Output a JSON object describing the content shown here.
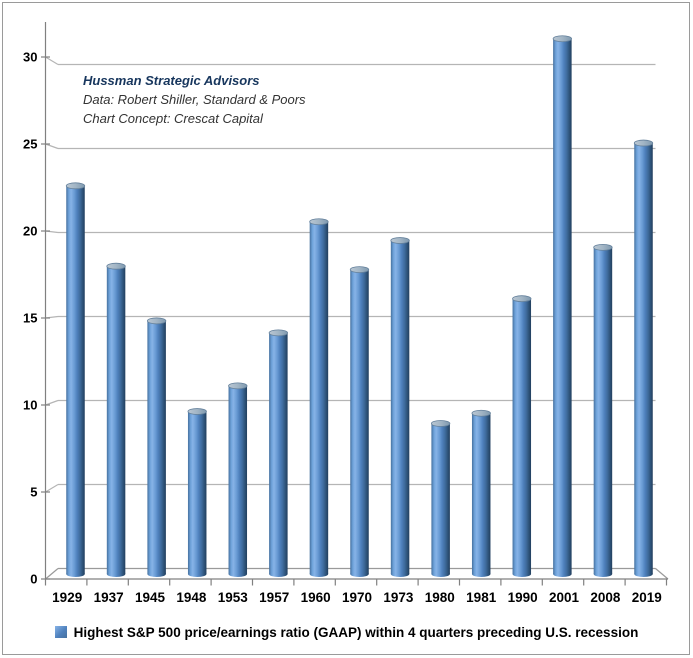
{
  "window": {
    "background": "#FFFFFF",
    "border_color": "#9A9A9A"
  },
  "chart_data": {
    "type": "bar",
    "style": "3d-cylinder",
    "categories": [
      "1929",
      "1937",
      "1945",
      "1948",
      "1953",
      "1957",
      "1960",
      "1970",
      "1973",
      "1980",
      "1981",
      "1990",
      "2001",
      "2008",
      "2019"
    ],
    "values": [
      22.7,
      18.0,
      14.8,
      9.5,
      11.0,
      14.1,
      20.6,
      17.8,
      19.5,
      8.8,
      9.4,
      16.1,
      31.3,
      19.1,
      25.2
    ],
    "legend": "Highest S&P 500 price/earnings ratio (GAAP) within 4 quarters preceding U.S. recession",
    "legend_position": "bottom",
    "xlabel": "",
    "ylabel": "",
    "yticks": [
      0,
      5,
      10,
      15,
      20,
      25,
      30
    ],
    "ylim": [
      0,
      32.6
    ],
    "grid": true,
    "annotation": {
      "line1": "Hussman Strategic Advisors",
      "line2": "Data: Robert Shiller, Standard & Poors",
      "line3": "Chart Concept: Crescat Capital"
    },
    "colors": {
      "bar_color": "#4F81BD",
      "bar_highlight": "#87B3E7",
      "bar_edge_left": "#46719F",
      "bar_dark": "#223F5E",
      "bar_top_face_light": "#BAC7D3",
      "bar_top_face_dark": "#7F99AF",
      "gridline": "#B5B5B5",
      "axis": "#808080",
      "floor": "#9A9A9A",
      "tick_label": "#000000",
      "legend_text": "#000000",
      "annotation_title": "#17365D",
      "annotation_text": "#333333"
    }
  }
}
